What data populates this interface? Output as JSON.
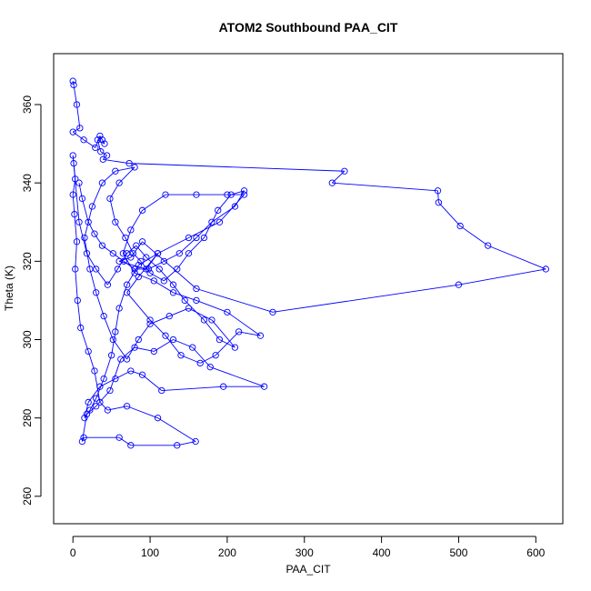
{
  "chart_data": {
    "type": "line",
    "title": "ATOM2 Southbound PAA_CIT",
    "xlabel": "PAA_CIT",
    "ylabel": "Theta (K)",
    "xlim": [
      -25,
      635
    ],
    "ylim": [
      253,
      373
    ],
    "x_ticks": [
      0,
      100,
      200,
      300,
      400,
      500,
      600
    ],
    "y_ticks": [
      260,
      280,
      300,
      320,
      340,
      360
    ],
    "grid": false,
    "legend": "none",
    "series_color": "#0000ff",
    "series": [
      {
        "values": [
          [
            0,
            366
          ],
          [
            1,
            365
          ],
          [
            5,
            360
          ],
          [
            9,
            354
          ],
          [
            0,
            353
          ],
          [
            14,
            351
          ],
          [
            29,
            349
          ],
          [
            35,
            352
          ],
          [
            38,
            351
          ],
          [
            41,
            350
          ],
          [
            32,
            351
          ],
          [
            36,
            348
          ],
          [
            44,
            347
          ],
          [
            39,
            346
          ],
          [
            73,
            345
          ],
          [
            352,
            343
          ],
          [
            336,
            340
          ],
          [
            473,
            338
          ],
          [
            474,
            335
          ],
          [
            502,
            329
          ],
          [
            538,
            324
          ],
          [
            613,
            318
          ],
          [
            500,
            314
          ],
          [
            259,
            307
          ],
          [
            160,
            313
          ],
          [
            90,
            325
          ],
          [
            75,
            321
          ],
          [
            60,
            320
          ],
          [
            95,
            318
          ],
          [
            110,
            322
          ],
          [
            85,
            316
          ],
          [
            70,
            312
          ],
          [
            100,
            305
          ],
          [
            120,
            301
          ],
          [
            140,
            296
          ],
          [
            165,
            294
          ],
          [
            185,
            296
          ],
          [
            215,
            302
          ],
          [
            243,
            301
          ],
          [
            200,
            307
          ],
          [
            160,
            310
          ],
          [
            130,
            312
          ],
          [
            105,
            315
          ],
          [
            80,
            317
          ],
          [
            65,
            322
          ],
          [
            75,
            328
          ],
          [
            90,
            333
          ],
          [
            120,
            337
          ],
          [
            160,
            337
          ],
          [
            200,
            337
          ],
          [
            222,
            337
          ],
          [
            190,
            330
          ],
          [
            150,
            326
          ],
          [
            110,
            322
          ],
          [
            85,
            319
          ],
          [
            70,
            314
          ],
          [
            60,
            308
          ],
          [
            55,
            302
          ],
          [
            50,
            296
          ],
          [
            40,
            290
          ],
          [
            30,
            285
          ],
          [
            22,
            282
          ],
          [
            15,
            280
          ],
          [
            20,
            284
          ],
          [
            35,
            288
          ],
          [
            55,
            290
          ],
          [
            75,
            292
          ],
          [
            90,
            291
          ],
          [
            115,
            287
          ],
          [
            195,
            288
          ],
          [
            248,
            288
          ],
          [
            178,
            293
          ],
          [
            155,
            298
          ],
          [
            130,
            300
          ],
          [
            105,
            297
          ],
          [
            80,
            298
          ],
          [
            62,
            295
          ],
          [
            48,
            287
          ],
          [
            30,
            283
          ],
          [
            18,
            281
          ],
          [
            12,
            274
          ],
          [
            14,
            275
          ],
          [
            60,
            275
          ],
          [
            75,
            273
          ],
          [
            135,
            273
          ],
          [
            159,
            274
          ],
          [
            110,
            280
          ],
          [
            70,
            283
          ],
          [
            45,
            282
          ],
          [
            35,
            284
          ],
          [
            28,
            292
          ],
          [
            20,
            297
          ],
          [
            10,
            303
          ],
          [
            6,
            310
          ],
          [
            3,
            318
          ],
          [
            5,
            325
          ],
          [
            2,
            332
          ],
          [
            0,
            337
          ],
          [
            3,
            341
          ],
          [
            1,
            345
          ],
          [
            0,
            347
          ],
          [
            8,
            330
          ],
          [
            18,
            322
          ],
          [
            30,
            318
          ],
          [
            45,
            314
          ],
          [
            58,
            318
          ],
          [
            70,
            322
          ],
          [
            82,
            324
          ],
          [
            95,
            321
          ],
          [
            112,
            318
          ],
          [
            130,
            314
          ],
          [
            145,
            310
          ],
          [
            170,
            305
          ],
          [
            190,
            300
          ],
          [
            210,
            298
          ],
          [
            180,
            305
          ],
          [
            150,
            308
          ],
          [
            125,
            306
          ],
          [
            100,
            304
          ],
          [
            85,
            300
          ],
          [
            70,
            295
          ],
          [
            52,
            300
          ],
          [
            40,
            306
          ],
          [
            30,
            312
          ],
          [
            22,
            318
          ],
          [
            15,
            326
          ],
          [
            25,
            334
          ],
          [
            38,
            340
          ],
          [
            55,
            343
          ],
          [
            80,
            344
          ],
          [
            60,
            340
          ],
          [
            48,
            336
          ],
          [
            55,
            330
          ],
          [
            68,
            326
          ],
          [
            78,
            322
          ],
          [
            88,
            320
          ],
          [
            100,
            317
          ],
          [
            118,
            315
          ],
          [
            135,
            318
          ],
          [
            150,
            322
          ],
          [
            170,
            326
          ],
          [
            188,
            333
          ],
          [
            205,
            337
          ],
          [
            222,
            338
          ],
          [
            210,
            334
          ],
          [
            180,
            330
          ],
          [
            160,
            326
          ],
          [
            138,
            322
          ],
          [
            118,
            320
          ],
          [
            98,
            318
          ],
          [
            80,
            318
          ],
          [
            66,
            320
          ],
          [
            52,
            322
          ],
          [
            38,
            324
          ],
          [
            28,
            327
          ],
          [
            20,
            330
          ],
          [
            12,
            336
          ],
          [
            8,
            340
          ]
        ]
      }
    ]
  }
}
